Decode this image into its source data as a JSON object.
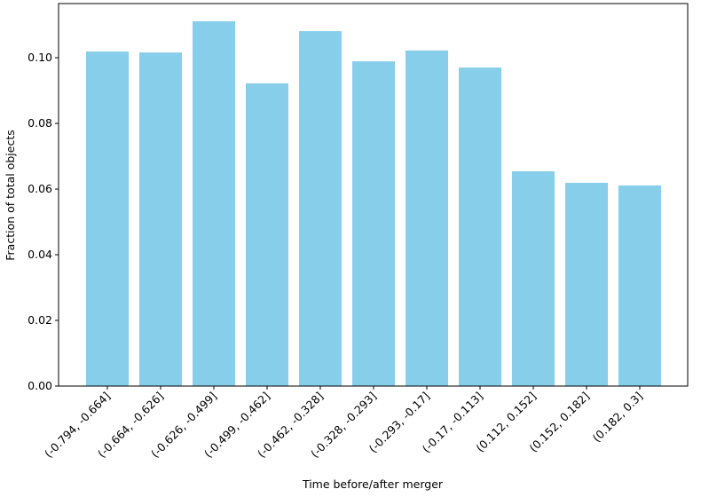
{
  "chart_data": {
    "type": "bar",
    "xlabel": "Time before/after merger",
    "ylabel": "Fraction of total objects",
    "categories": [
      "(-0.794, -0.664]",
      "(-0.664, -0.626]",
      "(-0.626, -0.499]",
      "(-0.499, -0.462]",
      "(-0.462, -0.328]",
      "(-0.328, -0.293]",
      "(-0.293, -0.17]",
      "(-0.17, -0.113]",
      "(0.112, 0.152]",
      "(0.152, 0.182]",
      "(0.182, 0.3]"
    ],
    "values": [
      0.1019,
      0.1016,
      0.1111,
      0.0922,
      0.1081,
      0.0989,
      0.1022,
      0.097,
      0.0654,
      0.0619,
      0.0611
    ],
    "color": "#87ceeb",
    "ylim": [
      0,
      0.1165
    ],
    "yticks": [
      {
        "value": 0,
        "label": "0.00"
      },
      {
        "value": 0.02,
        "label": "0.02"
      },
      {
        "value": 0.04,
        "label": "0.04"
      },
      {
        "value": 0.06,
        "label": "0.06"
      },
      {
        "value": 0.08,
        "label": "0.08"
      },
      {
        "value": 0.1,
        "label": "0.10"
      }
    ]
  }
}
